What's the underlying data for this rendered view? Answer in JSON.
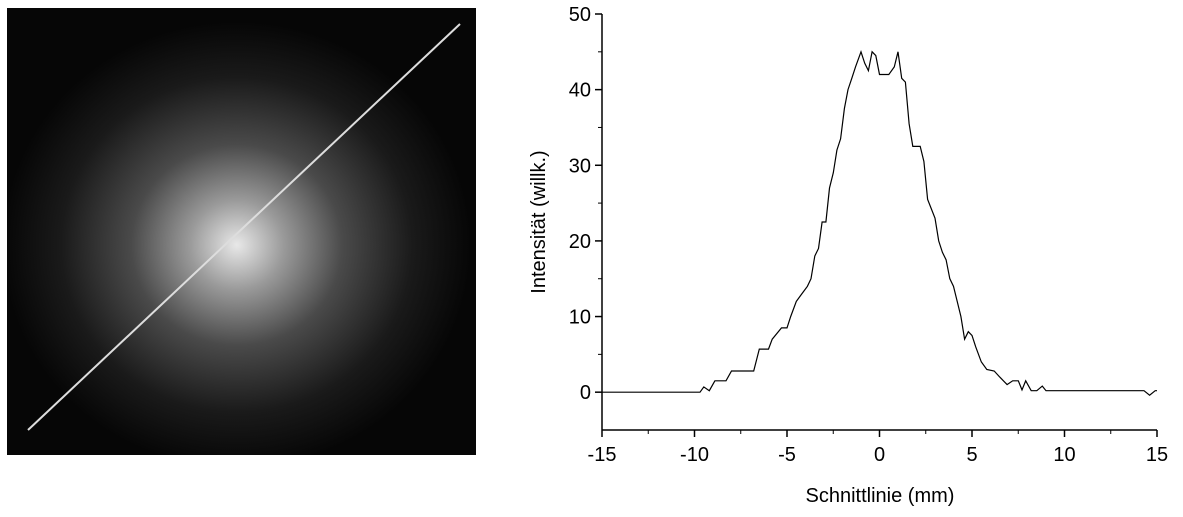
{
  "chart_data": {
    "type": "line",
    "xlabel": "Schnittlinie (mm)",
    "ylabel": "Intensität (willk.)",
    "xlim": [
      -15,
      15
    ],
    "ylim": [
      -5,
      50
    ],
    "xticks": [
      -15,
      -10,
      -5,
      0,
      5,
      10,
      15
    ],
    "yticks": [
      0,
      10,
      20,
      30,
      40,
      50
    ],
    "series": [
      {
        "color": "#000000",
        "x": [
          -15,
          -9.7,
          -9.5,
          -9.2,
          -8.9,
          -8.3,
          -8.0,
          -6.8,
          -6.5,
          -6.0,
          -5.8,
          -5.3,
          -5.0,
          -4.8,
          -4.5,
          -4.2,
          -3.9,
          -3.7,
          -3.5,
          -3.3,
          -3.1,
          -2.9,
          -2.7,
          -2.5,
          -2.3,
          -2.1,
          -1.9,
          -1.7,
          -1.5,
          -1.3,
          -1.0,
          -0.8,
          -0.6,
          -0.4,
          -0.2,
          0,
          0.5,
          0.8,
          1.0,
          1.2,
          1.4,
          1.6,
          1.8,
          2.2,
          2.4,
          2.6,
          3.0,
          3.2,
          3.4,
          3.6,
          3.8,
          4.0,
          4.2,
          4.4,
          4.6,
          4.8,
          5.0,
          5.2,
          5.5,
          5.8,
          6.2,
          6.5,
          6.9,
          7.2,
          7.5,
          7.7,
          7.9,
          8.2,
          8.5,
          8.8,
          9.0,
          14.3,
          14.6,
          14.9,
          15
        ],
        "values": [
          0,
          0,
          0.7,
          0.2,
          1.5,
          1.5,
          2.8,
          2.8,
          5.7,
          5.7,
          7,
          8.5,
          8.5,
          10,
          12,
          13,
          14,
          15,
          18,
          19,
          22.5,
          22.5,
          27,
          29,
          32,
          33.5,
          37.5,
          40,
          41.5,
          43,
          45,
          43.5,
          42.5,
          45,
          44.5,
          42,
          42,
          43,
          45,
          41.5,
          41,
          35.5,
          32.5,
          32.5,
          30.5,
          25.5,
          23,
          20,
          18.5,
          17.5,
          15,
          14,
          12,
          10,
          7,
          8,
          7.5,
          6,
          4,
          3,
          2.8,
          2,
          1,
          1.5,
          1.5,
          0.3,
          1.5,
          0.2,
          0.2,
          0.8,
          0.2,
          0.2,
          -0.4,
          0.2,
          0.2
        ]
      }
    ]
  }
}
